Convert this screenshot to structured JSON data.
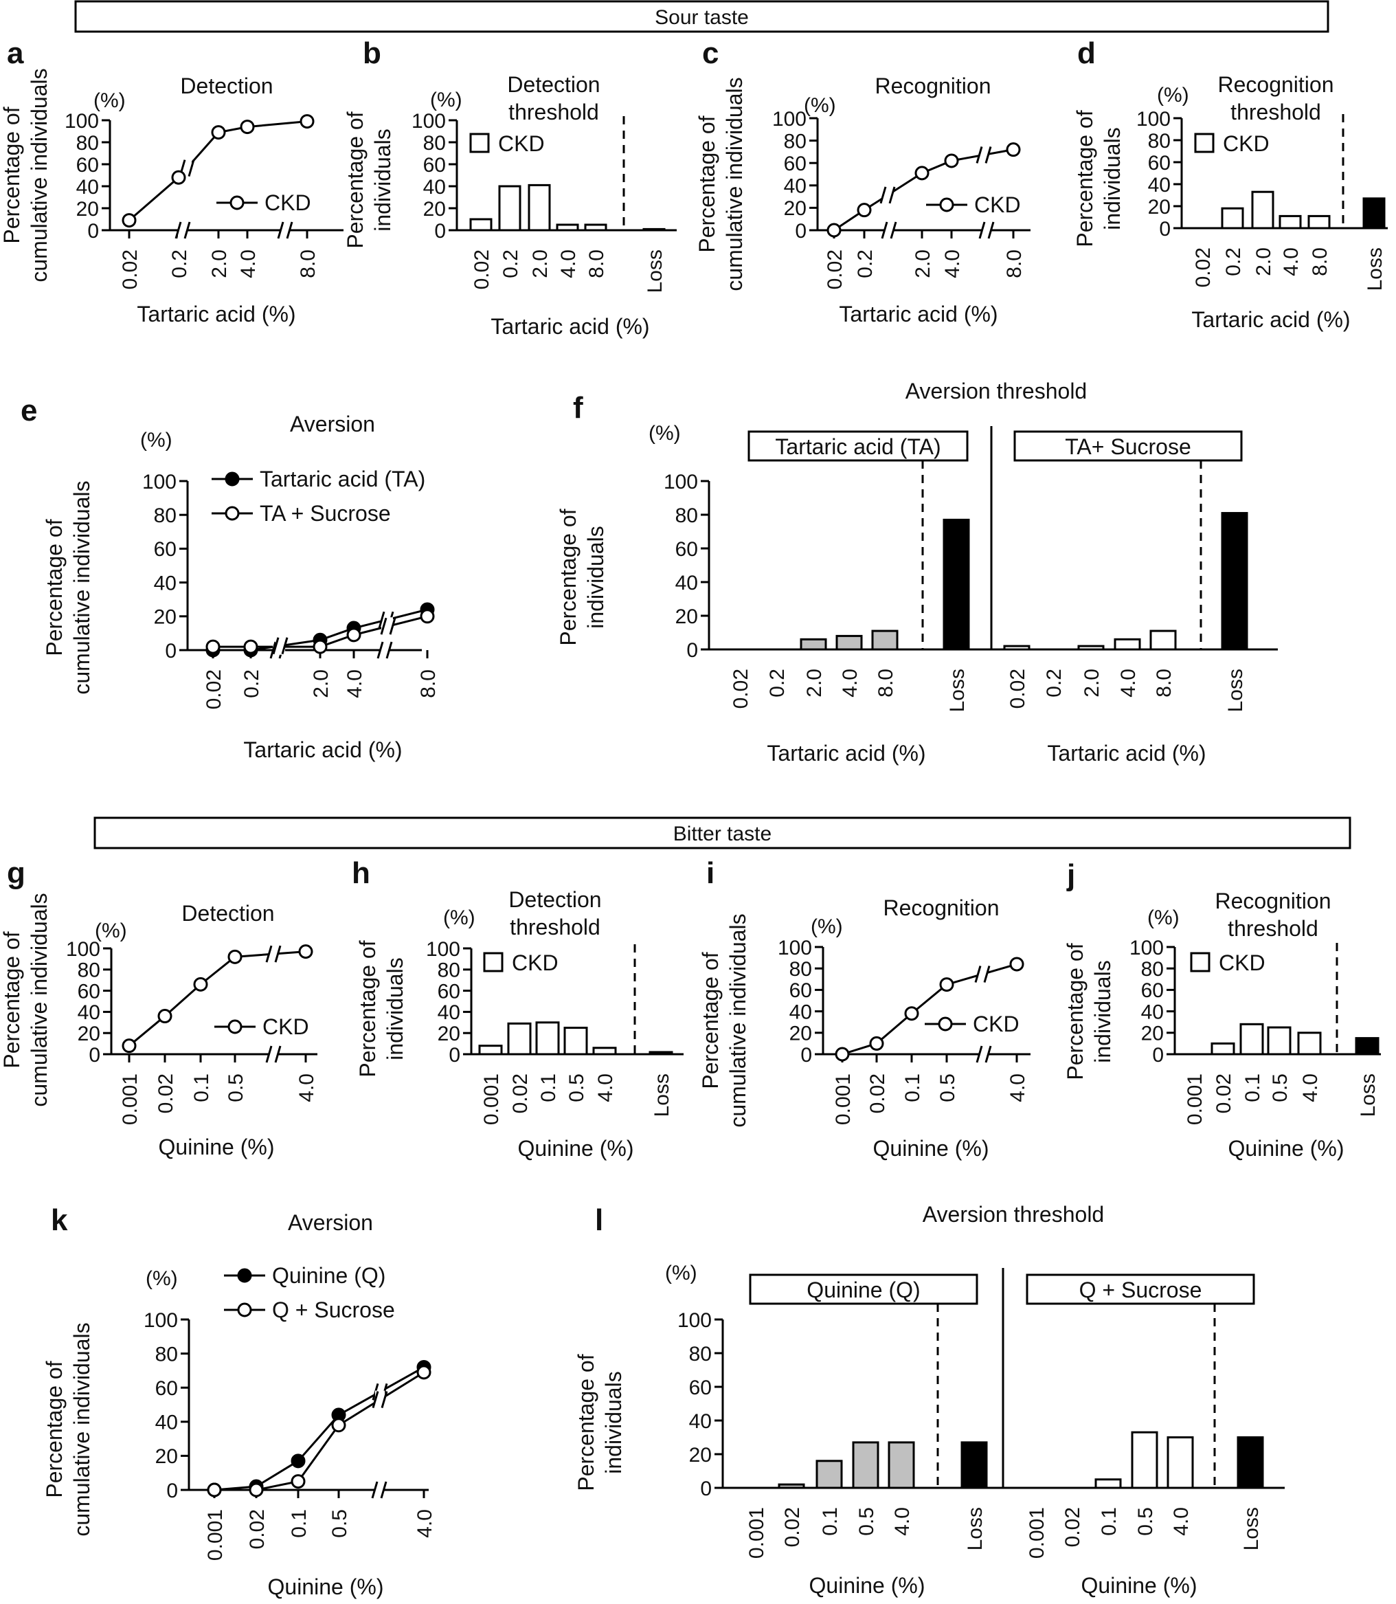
{
  "sections": {
    "sour": "Sour taste",
    "bitter": "Bitter taste"
  },
  "labels": {
    "pct": "(%)",
    "cum_y1": "Percentage of",
    "cum_y2": "cumulative individuals",
    "ind_y1": "Percentage of",
    "ind_y2": "individuals",
    "detection": "Detection",
    "detection_threshold_1": "Detection",
    "detection_threshold_2": "threshold",
    "recognition": "Recognition",
    "recognition_threshold_1": "Recognition",
    "recognition_threshold_2": "threshold",
    "aversion": "Aversion",
    "aversion_threshold": "Aversion threshold",
    "xlabel_ta": "Tartaric acid (%)",
    "xlabel_q": "Quinine (%)"
  },
  "colors": {
    "gray": "#c0c0c0",
    "black": "#000000",
    "white": "#ffffff"
  },
  "chart_data": [
    {
      "id": "a",
      "type": "line",
      "title": "Detection",
      "xlabel": "Tartaric acid (%)",
      "ylabel": "Percentage of cumulative individuals",
      "ylim": [
        0,
        100
      ],
      "yticks": [
        0,
        20,
        40,
        60,
        80,
        100
      ],
      "categories": [
        "0.02",
        "0.2",
        "2.0",
        "4.0",
        "8.0"
      ],
      "series": [
        {
          "name": "CKD",
          "values": [
            9,
            48,
            89,
            94,
            99
          ],
          "marker": "open"
        }
      ]
    },
    {
      "id": "b",
      "type": "bar",
      "title": "Detection threshold",
      "xlabel": "Tartaric acid (%)",
      "ylabel": "Percentage of individuals",
      "ylim": [
        0,
        100
      ],
      "yticks": [
        0,
        20,
        40,
        60,
        80,
        100
      ],
      "categories": [
        "0.02",
        "0.2",
        "2.0",
        "4.0",
        "8.0",
        "Loss"
      ],
      "legend": "CKD",
      "values": [
        10,
        40,
        41,
        5,
        5,
        1
      ]
    },
    {
      "id": "c",
      "type": "line",
      "title": "Recognition",
      "xlabel": "Tartaric acid (%)",
      "ylabel": "Percentage of cumulative individuals",
      "ylim": [
        0,
        100
      ],
      "yticks": [
        0,
        20,
        40,
        60,
        80,
        100
      ],
      "categories": [
        "0.02",
        "0.2",
        "2.0",
        "4.0",
        "8.0"
      ],
      "series": [
        {
          "name": "CKD",
          "values": [
            0,
            18,
            51,
            62,
            72
          ],
          "marker": "open"
        }
      ]
    },
    {
      "id": "d",
      "type": "bar",
      "title": "Recognition threshold",
      "xlabel": "Tartaric acid (%)",
      "ylabel": "Percentage of individuals",
      "ylim": [
        0,
        100
      ],
      "yticks": [
        0,
        20,
        40,
        60,
        80,
        100
      ],
      "categories": [
        "0.02",
        "0.2",
        "2.0",
        "4.0",
        "8.0",
        "Loss"
      ],
      "legend": "CKD",
      "values": [
        0,
        18,
        33,
        11,
        11,
        27
      ]
    },
    {
      "id": "e",
      "type": "line",
      "title": "Aversion",
      "xlabel": "Tartaric acid (%)",
      "ylabel": "Percentage of cumulative individuals",
      "ylim": [
        0,
        100
      ],
      "yticks": [
        0,
        20,
        40,
        60,
        80,
        100
      ],
      "categories": [
        "0.02",
        "0.2",
        "2.0",
        "4.0",
        "8.0"
      ],
      "series": [
        {
          "name": "Tartaric acid (TA)",
          "values": [
            0,
            0,
            6,
            13,
            24
          ],
          "marker": "filled"
        },
        {
          "name": "TA + Sucrose",
          "values": [
            2,
            2,
            2,
            9,
            20
          ],
          "marker": "open"
        }
      ]
    },
    {
      "id": "f",
      "type": "bar",
      "title": "Aversion threshold",
      "xlabel": "Tartaric acid (%)",
      "ylabel": "Percentage of individuals",
      "ylim": [
        0,
        100
      ],
      "yticks": [
        0,
        20,
        40,
        60,
        80,
        100
      ],
      "categories": [
        "0.02",
        "0.2",
        "2.0",
        "4.0",
        "8.0",
        "Loss"
      ],
      "groups": [
        {
          "name": "Tartaric acid (TA)",
          "values": [
            0,
            0,
            6,
            8,
            11,
            77
          ],
          "fill": "gray"
        },
        {
          "name": "TA+ Sucrose",
          "values": [
            2,
            0,
            2,
            6,
            11,
            81
          ],
          "fill": "white"
        }
      ]
    },
    {
      "id": "g",
      "type": "line",
      "title": "Detection",
      "xlabel": "Quinine (%)",
      "ylabel": "Percentage of cumulative individuals",
      "ylim": [
        0,
        100
      ],
      "yticks": [
        0,
        20,
        40,
        60,
        80,
        100
      ],
      "categories": [
        "0.001",
        "0.02",
        "0.1",
        "0.5",
        "4.0"
      ],
      "series": [
        {
          "name": "CKD",
          "values": [
            8,
            36,
            66,
            92,
            97
          ],
          "marker": "open"
        }
      ]
    },
    {
      "id": "h",
      "type": "bar",
      "title": "Detection threshold",
      "xlabel": "Quinine (%)",
      "ylabel": "Percentage of individuals",
      "ylim": [
        0,
        100
      ],
      "yticks": [
        0,
        20,
        40,
        60,
        80,
        100
      ],
      "categories": [
        "0.001",
        "0.02",
        "0.1",
        "0.5",
        "4.0",
        "Loss"
      ],
      "legend": "CKD",
      "values": [
        8,
        29,
        30,
        25,
        6,
        2
      ]
    },
    {
      "id": "i",
      "type": "line",
      "title": "Recognition",
      "xlabel": "Quinine (%)",
      "ylabel": "Percentage of cumulative individuals",
      "ylim": [
        0,
        100
      ],
      "yticks": [
        0,
        20,
        40,
        60,
        80,
        100
      ],
      "categories": [
        "0.001",
        "0.02",
        "0.1",
        "0.5",
        "4.0"
      ],
      "series": [
        {
          "name": "CKD",
          "values": [
            0,
            10,
            38,
            65,
            84
          ],
          "marker": "open"
        }
      ]
    },
    {
      "id": "j",
      "type": "bar",
      "title": "Recognition threshold",
      "xlabel": "Quinine (%)",
      "ylabel": "Percentage of individuals",
      "ylim": [
        0,
        100
      ],
      "yticks": [
        0,
        20,
        40,
        60,
        80,
        100
      ],
      "categories": [
        "0.001",
        "0.02",
        "0.1",
        "0.5",
        "4.0",
        "Loss"
      ],
      "legend": "CKD",
      "values": [
        0,
        10,
        28,
        25,
        20,
        15
      ]
    },
    {
      "id": "k",
      "type": "line",
      "title": "Aversion",
      "xlabel": "Quinine (%)",
      "ylabel": "Percentage of cumulative individuals",
      "ylim": [
        0,
        100
      ],
      "yticks": [
        0,
        20,
        40,
        60,
        80,
        100
      ],
      "categories": [
        "0.001",
        "0.02",
        "0.1",
        "0.5",
        "4.0"
      ],
      "series": [
        {
          "name": "Quinine (Q)",
          "values": [
            0,
            2,
            17,
            44,
            72
          ],
          "marker": "filled"
        },
        {
          "name": "Q + Sucrose",
          "values": [
            0,
            0,
            5,
            38,
            69
          ],
          "marker": "open"
        }
      ]
    },
    {
      "id": "l",
      "type": "bar",
      "title": "Aversion threshold",
      "xlabel": "Quinine (%)",
      "ylabel": "Percentage of individuals",
      "ylim": [
        0,
        100
      ],
      "yticks": [
        0,
        20,
        40,
        60,
        80,
        100
      ],
      "categories": [
        "0.001",
        "0.02",
        "0.1",
        "0.5",
        "4.0",
        "Loss"
      ],
      "groups": [
        {
          "name": "Quinine (Q)",
          "values": [
            0,
            2,
            16,
            27,
            27,
            27
          ],
          "fill": "gray"
        },
        {
          "name": "Q + Sucrose",
          "values": [
            0,
            0,
            5,
            33,
            30,
            30
          ],
          "fill": "white"
        }
      ]
    }
  ]
}
